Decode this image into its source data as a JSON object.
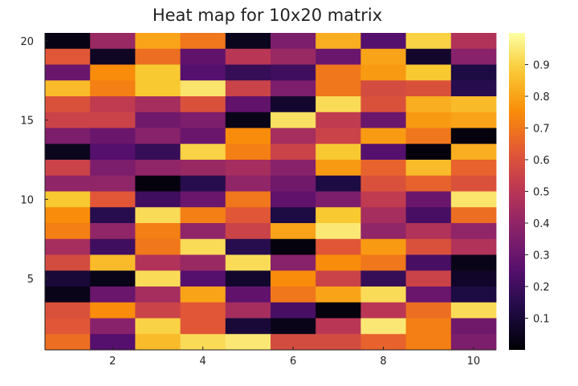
{
  "chart_data": {
    "type": "heatmap",
    "title": "Heat map for 10x20 matrix",
    "xlabel": "",
    "ylabel": "",
    "x_ticks": [
      2,
      4,
      6,
      8,
      10
    ],
    "y_ticks": [
      5,
      10,
      15,
      20
    ],
    "xlim": [
      0.5,
      10.5
    ],
    "ylim": [
      0.5,
      20.5
    ],
    "n_cols": 10,
    "n_rows": 20,
    "colormap": "inferno",
    "colorbar": {
      "range": [
        0,
        1
      ],
      "ticks": [
        0.1,
        0.2,
        0.3,
        0.4,
        0.5,
        0.6,
        0.7,
        0.8,
        0.9
      ]
    },
    "grid": false,
    "rows_top_to_bottom": [
      [
        0.03,
        0.42,
        0.8,
        0.7,
        0.05,
        0.35,
        0.82,
        0.25,
        0.9,
        0.48
      ],
      [
        0.62,
        0.06,
        0.68,
        0.28,
        0.5,
        0.42,
        0.3,
        0.8,
        0.08,
        0.38
      ],
      [
        0.3,
        0.75,
        0.88,
        0.25,
        0.18,
        0.2,
        0.7,
        0.78,
        0.88,
        0.12
      ],
      [
        0.85,
        0.72,
        0.88,
        0.94,
        0.55,
        0.35,
        0.7,
        0.58,
        0.6,
        0.15
      ],
      [
        0.6,
        0.52,
        0.45,
        0.6,
        0.28,
        0.08,
        0.92,
        0.6,
        0.82,
        0.85
      ],
      [
        0.55,
        0.55,
        0.32,
        0.35,
        0.04,
        0.93,
        0.52,
        0.3,
        0.78,
        0.8
      ],
      [
        0.35,
        0.3,
        0.38,
        0.3,
        0.75,
        0.45,
        0.55,
        0.78,
        0.7,
        0.02
      ],
      [
        0.05,
        0.25,
        0.18,
        0.9,
        0.72,
        0.55,
        0.88,
        0.25,
        0.02,
        0.82
      ],
      [
        0.55,
        0.35,
        0.4,
        0.42,
        0.45,
        0.38,
        0.78,
        0.65,
        0.85,
        0.65
      ],
      [
        0.4,
        0.4,
        0.02,
        0.15,
        0.4,
        0.32,
        0.12,
        0.6,
        0.65,
        0.6
      ],
      [
        0.88,
        0.62,
        0.2,
        0.3,
        0.7,
        0.28,
        0.35,
        0.52,
        0.3,
        0.94
      ],
      [
        0.75,
        0.15,
        0.92,
        0.72,
        0.62,
        0.12,
        0.88,
        0.45,
        0.22,
        0.68
      ],
      [
        0.72,
        0.4,
        0.72,
        0.4,
        0.55,
        0.8,
        0.95,
        0.4,
        0.48,
        0.4
      ],
      [
        0.45,
        0.2,
        0.7,
        0.92,
        0.15,
        0.02,
        0.62,
        0.78,
        0.6,
        0.48
      ],
      [
        0.58,
        0.85,
        0.48,
        0.42,
        0.92,
        0.38,
        0.75,
        0.7,
        0.22,
        0.04
      ],
      [
        0.1,
        0.04,
        0.92,
        0.25,
        0.08,
        0.75,
        0.55,
        0.18,
        0.55,
        0.07
      ],
      [
        0.04,
        0.3,
        0.45,
        0.8,
        0.28,
        0.7,
        0.8,
        0.92,
        0.3,
        0.12
      ],
      [
        0.6,
        0.75,
        0.55,
        0.62,
        0.45,
        0.22,
        0.02,
        0.5,
        0.68,
        0.92
      ],
      [
        0.62,
        0.38,
        0.9,
        0.62,
        0.1,
        0.04,
        0.5,
        0.95,
        0.72,
        0.32
      ],
      [
        0.68,
        0.25,
        0.85,
        0.92,
        0.95,
        0.58,
        0.58,
        0.65,
        0.72,
        0.35
      ]
    ]
  }
}
